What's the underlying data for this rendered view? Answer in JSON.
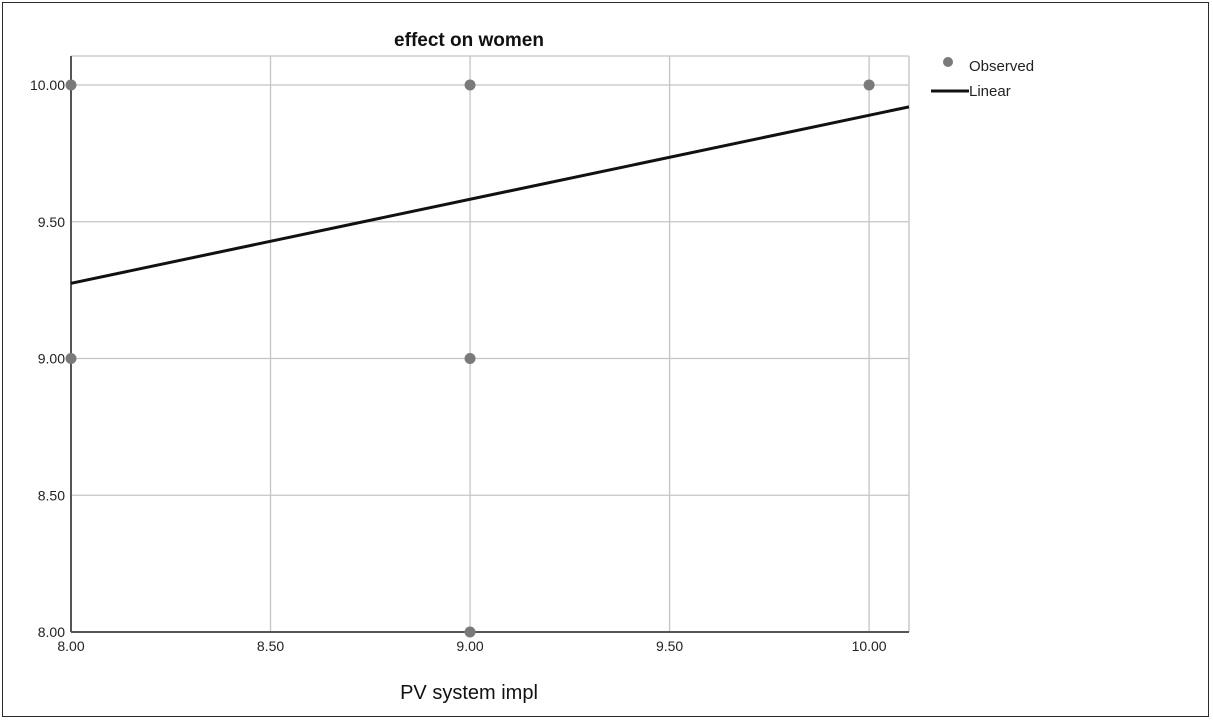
{
  "chart_data": {
    "type": "scatter",
    "title": "effect on women",
    "xlabel": "PV system impl",
    "ylabel": "",
    "xlim": [
      8.0,
      10.1
    ],
    "ylim": [
      8.0,
      10.0
    ],
    "x_ticks": [
      "8.00",
      "8.50",
      "9.00",
      "9.50",
      "10.00"
    ],
    "y_ticks": [
      "8.00",
      "8.50",
      "9.00",
      "9.50",
      "10.00"
    ],
    "grid": true,
    "legend_position": "top-right",
    "series": [
      {
        "name": "Observed",
        "kind": "points",
        "color": "#7a7a7a",
        "points": [
          {
            "x": 8.0,
            "y": 10.0
          },
          {
            "x": 8.0,
            "y": 9.0
          },
          {
            "x": 9.0,
            "y": 10.0
          },
          {
            "x": 9.0,
            "y": 9.0
          },
          {
            "x": 9.0,
            "y": 8.0
          },
          {
            "x": 10.0,
            "y": 10.0
          }
        ]
      },
      {
        "name": "Linear",
        "kind": "line",
        "color": "#111111",
        "points": [
          {
            "x": 8.0,
            "y": 9.275
          },
          {
            "x": 10.1,
            "y": 9.92
          }
        ]
      }
    ]
  }
}
